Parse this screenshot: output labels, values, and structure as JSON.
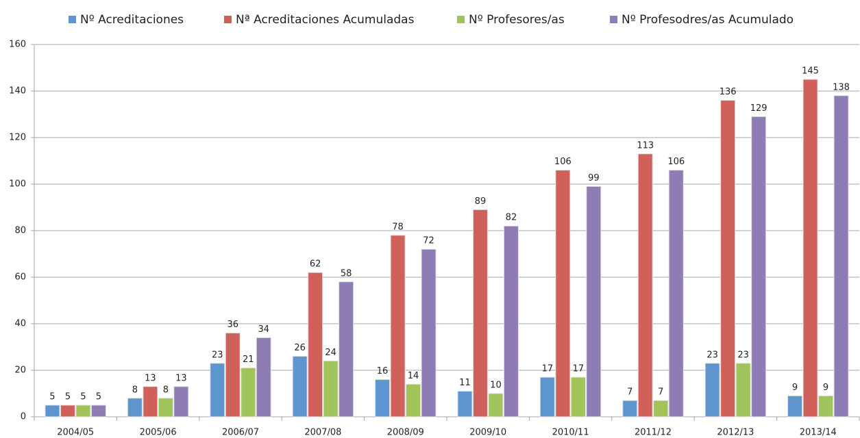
{
  "chart_data": {
    "type": "bar",
    "categories": [
      "2004/05",
      "2005/06",
      "2006/07",
      "2007/08",
      "2008/09",
      "2009/10",
      "2010/11",
      "2011/12",
      "2012/13",
      "2013/14"
    ],
    "series": [
      {
        "name": "Nº Acreditaciones",
        "color": "#5e95cf",
        "values": [
          5,
          8,
          23,
          26,
          16,
          11,
          17,
          7,
          23,
          9
        ]
      },
      {
        "name": "Nª Acreditaciones Acumuladas",
        "color": "#d0605a",
        "values": [
          5,
          13,
          36,
          62,
          78,
          89,
          106,
          113,
          136,
          145
        ]
      },
      {
        "name": "Nº Profesores/as",
        "color": "#a1c45a",
        "values": [
          5,
          8,
          21,
          24,
          14,
          10,
          17,
          7,
          23,
          9
        ]
      },
      {
        "name": "Nº Profesodres/as Acumulado",
        "color": "#8e7cb5",
        "values": [
          5,
          13,
          34,
          58,
          72,
          82,
          99,
          106,
          129,
          138
        ]
      }
    ],
    "ylim": [
      0,
      160
    ],
    "yticks": [
      0,
      20,
      40,
      60,
      80,
      100,
      120,
      140,
      160
    ],
    "grid": true,
    "legend": "top"
  }
}
